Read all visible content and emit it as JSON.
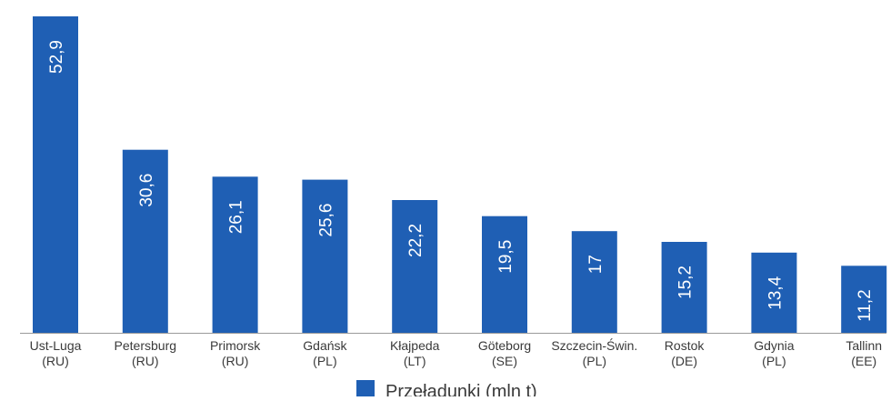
{
  "chart_data": {
    "type": "bar",
    "categories": [
      [
        "Ust-Luga",
        "(RU)"
      ],
      [
        "Petersburg",
        "(RU)"
      ],
      [
        "Primorsk",
        "(RU)"
      ],
      [
        "Gdańsk",
        "(PL)"
      ],
      [
        "Kłajpeda",
        "(LT)"
      ],
      [
        "Göteborg",
        "(SE)"
      ],
      [
        "Szczecin-Świn.",
        "(PL)"
      ],
      [
        "Rostok",
        "(DE)"
      ],
      [
        "Gdynia",
        "(PL)"
      ],
      [
        "Tallinn",
        "(EE)"
      ]
    ],
    "series": [
      {
        "name": "Przeładunki (mln t)",
        "values": [
          52.9,
          30.6,
          26.1,
          25.6,
          22.2,
          19.5,
          17,
          15.2,
          13.4,
          11.2
        ],
        "value_labels": [
          "52,9",
          "30,6",
          "26,1",
          "25,6",
          "22,2",
          "19,5",
          "17",
          "15,2",
          "13,4",
          "11,2"
        ]
      }
    ],
    "ylim": [
      0,
      52.9
    ],
    "grid": false,
    "legend_position": "bottom-center",
    "colors": {
      "bar": "#1f5fb4",
      "axis": "#9a9a9a",
      "text": "#3a3a3a",
      "value_text": "#ffffff"
    }
  }
}
